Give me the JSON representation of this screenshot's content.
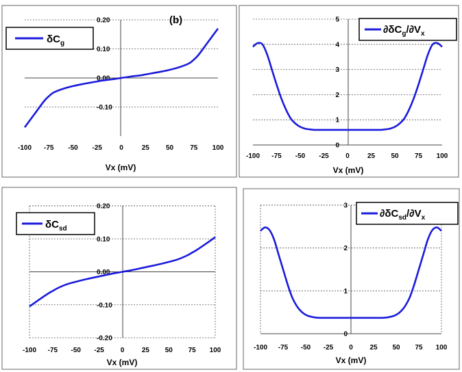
{
  "chart_data": [
    {
      "type": "line",
      "panel_label": "(b)",
      "xlabel": "Vx (mV)",
      "ylabel": "",
      "xlim": [
        -100,
        100
      ],
      "ylim": [
        -0.2,
        0.2
      ],
      "x_ticks": [
        -100,
        -75,
        -50,
        -25,
        0,
        25,
        50,
        75,
        100
      ],
      "y_ticks": [
        -0.1,
        0,
        0.1,
        0.2
      ],
      "y_tick_labels": [
        "-0.10",
        "0.00",
        "0.10",
        "0.20"
      ],
      "grid": "horizontal dotted",
      "legend_position": "top-left",
      "series": [
        {
          "name": "δCg",
          "color": "#1a1adc",
          "x": [
            -100,
            -90,
            -80,
            -75,
            -70,
            -60,
            -50,
            -40,
            -30,
            -25,
            -20,
            -10,
            0,
            10,
            20,
            25,
            30,
            40,
            50,
            60,
            70,
            75,
            80,
            90,
            100
          ],
          "y": [
            -0.17,
            -0.125,
            -0.08,
            -0.063,
            -0.05,
            -0.037,
            -0.028,
            -0.021,
            -0.015,
            -0.012,
            -0.009,
            -0.005,
            0.0,
            0.005,
            0.009,
            0.012,
            0.015,
            0.021,
            0.028,
            0.037,
            0.05,
            0.063,
            0.08,
            0.125,
            0.17
          ]
        }
      ]
    },
    {
      "type": "line",
      "xlabel": "Vx (mV)",
      "ylabel": "",
      "xlim": [
        -100,
        100
      ],
      "ylim": [
        0,
        5
      ],
      "x_ticks": [
        -100,
        -75,
        -50,
        -25,
        0,
        25,
        50,
        75,
        100
      ],
      "y_ticks": [
        0,
        1,
        2,
        3,
        4,
        5
      ],
      "y_tick_labels": [
        "0",
        "1",
        "2",
        "3",
        "4",
        "5"
      ],
      "grid": "horizontal dotted",
      "legend_position": "top-right",
      "series": [
        {
          "name": "∂δCg/∂Vx",
          "color": "#1a1adc",
          "x": [
            -100,
            -95,
            -90,
            -85,
            -80,
            -75,
            -70,
            -65,
            -60,
            -55,
            -50,
            -45,
            -40,
            -35,
            -30,
            -25,
            0,
            25,
            30,
            35,
            40,
            45,
            50,
            55,
            60,
            65,
            70,
            75,
            80,
            85,
            90,
            95,
            100
          ],
          "y": [
            3.9,
            4.05,
            4.0,
            3.6,
            3.0,
            2.4,
            1.85,
            1.4,
            1.05,
            0.85,
            0.72,
            0.65,
            0.62,
            0.6,
            0.6,
            0.6,
            0.6,
            0.6,
            0.6,
            0.6,
            0.62,
            0.65,
            0.72,
            0.85,
            1.05,
            1.4,
            1.85,
            2.4,
            3.0,
            3.6,
            4.0,
            4.05,
            3.9
          ]
        }
      ]
    },
    {
      "type": "line",
      "xlabel": "Vx (mV)",
      "ylabel": "",
      "xlim": [
        -100,
        100
      ],
      "ylim": [
        -0.2,
        0.2
      ],
      "x_ticks": [
        -100,
        -75,
        -50,
        -25,
        0,
        25,
        50,
        75,
        100
      ],
      "y_ticks": [
        -0.2,
        -0.1,
        0,
        0.1,
        0.2
      ],
      "y_tick_labels": [
        "-0.20",
        "-0.10",
        "0.00",
        "0.10",
        "0.20"
      ],
      "grid": "dotted",
      "legend_position": "top-left",
      "series": [
        {
          "name": "δCsd",
          "color": "#1a1adc",
          "x": [
            -100,
            -90,
            -80,
            -75,
            -70,
            -60,
            -50,
            -40,
            -30,
            -25,
            -20,
            -10,
            0,
            10,
            20,
            25,
            30,
            40,
            50,
            60,
            70,
            75,
            80,
            90,
            100
          ],
          "y": [
            -0.105,
            -0.085,
            -0.066,
            -0.058,
            -0.05,
            -0.038,
            -0.03,
            -0.023,
            -0.017,
            -0.014,
            -0.011,
            -0.005,
            0.0,
            0.005,
            0.011,
            0.014,
            0.017,
            0.023,
            0.03,
            0.038,
            0.05,
            0.058,
            0.066,
            0.085,
            0.105
          ]
        }
      ]
    },
    {
      "type": "line",
      "xlabel": "Vx (mV)",
      "ylabel": "",
      "xlim": [
        -100,
        100
      ],
      "ylim": [
        0,
        3
      ],
      "x_ticks": [
        -100,
        -75,
        -50,
        -25,
        0,
        25,
        50,
        75,
        100
      ],
      "y_ticks": [
        0,
        1,
        2,
        3
      ],
      "y_tick_labels": [
        "0",
        "1",
        "2",
        "3"
      ],
      "grid": "dotted",
      "legend_position": "top-right",
      "series": [
        {
          "name": "∂δCsd/∂Vx",
          "color": "#1a1adc",
          "x": [
            -100,
            -95,
            -90,
            -85,
            -80,
            -75,
            -70,
            -65,
            -60,
            -55,
            -50,
            -45,
            -40,
            -35,
            -30,
            -25,
            0,
            25,
            30,
            35,
            40,
            45,
            50,
            55,
            60,
            65,
            70,
            75,
            80,
            85,
            90,
            95,
            100
          ],
          "y": [
            2.4,
            2.48,
            2.42,
            2.2,
            1.85,
            1.5,
            1.15,
            0.85,
            0.65,
            0.52,
            0.44,
            0.4,
            0.38,
            0.37,
            0.37,
            0.37,
            0.37,
            0.37,
            0.37,
            0.37,
            0.38,
            0.4,
            0.44,
            0.52,
            0.65,
            0.85,
            1.15,
            1.5,
            1.85,
            2.2,
            2.42,
            2.48,
            2.4
          ]
        }
      ]
    }
  ]
}
